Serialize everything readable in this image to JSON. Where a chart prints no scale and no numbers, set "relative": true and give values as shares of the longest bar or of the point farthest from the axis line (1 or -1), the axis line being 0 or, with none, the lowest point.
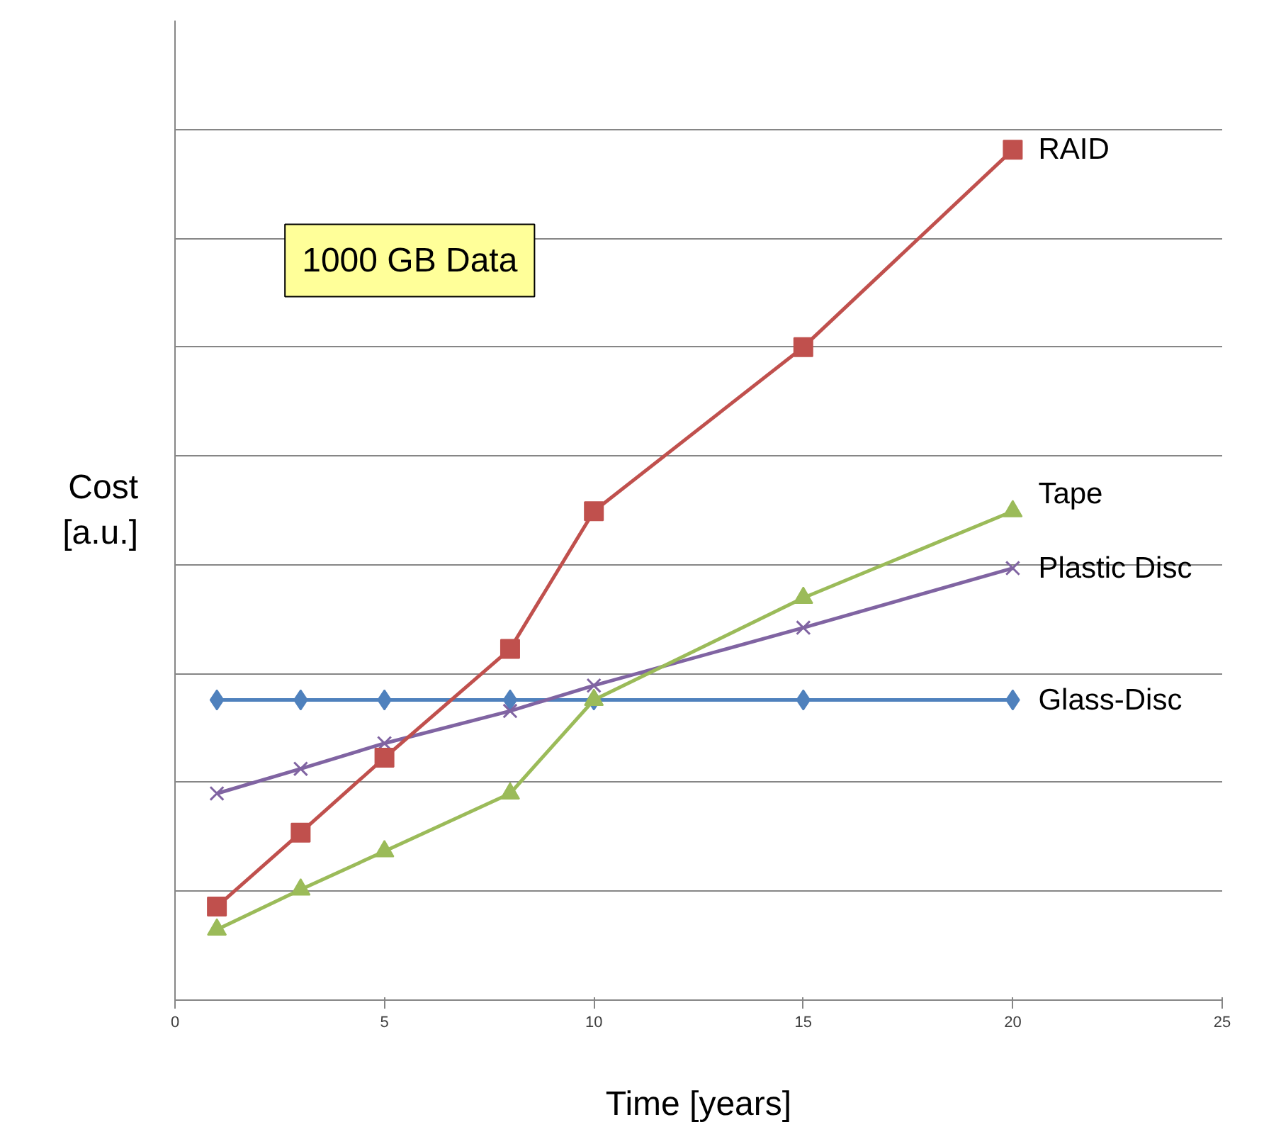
{
  "chart_data": {
    "type": "line",
    "relative": true,
    "xlabel": "Time [years]",
    "ylabel": "Cost\n[a.u.]",
    "annotations": [
      "1000 GB Data"
    ],
    "xlim": [
      0,
      25
    ],
    "xticks": [
      0,
      5,
      10,
      15,
      20,
      25
    ],
    "tick_labels": "x",
    "grid": "y",
    "legend": false,
    "series": [
      {
        "name": "RAID",
        "color": "#c0504d",
        "marker": "square",
        "x": [
          1,
          3,
          5,
          8,
          10,
          15,
          20
        ],
        "values": [
          0.11,
          0.197,
          0.285,
          0.413,
          0.575,
          0.768,
          1.0
        ]
      },
      {
        "name": "Tape",
        "color": "#9bbb59",
        "marker": "triangle",
        "x": [
          1,
          3,
          5,
          8,
          10,
          15,
          20
        ],
        "values": [
          0.083,
          0.13,
          0.175,
          0.243,
          0.353,
          0.473,
          0.575
        ]
      },
      {
        "name": "Plastic Disc",
        "color": "#8064a2",
        "marker": "cross",
        "x": [
          1,
          3,
          5,
          8,
          10,
          15,
          20
        ],
        "values": [
          0.243,
          0.272,
          0.302,
          0.34,
          0.37,
          0.438,
          0.508
        ]
      },
      {
        "name": "Glass-Disc",
        "color": "#4f81bd",
        "marker": "diamond",
        "x": [
          1,
          3,
          5,
          8,
          10,
          15,
          20
        ],
        "values": [
          0.353,
          0.353,
          0.353,
          0.353,
          0.353,
          0.353,
          0.353
        ]
      }
    ]
  }
}
